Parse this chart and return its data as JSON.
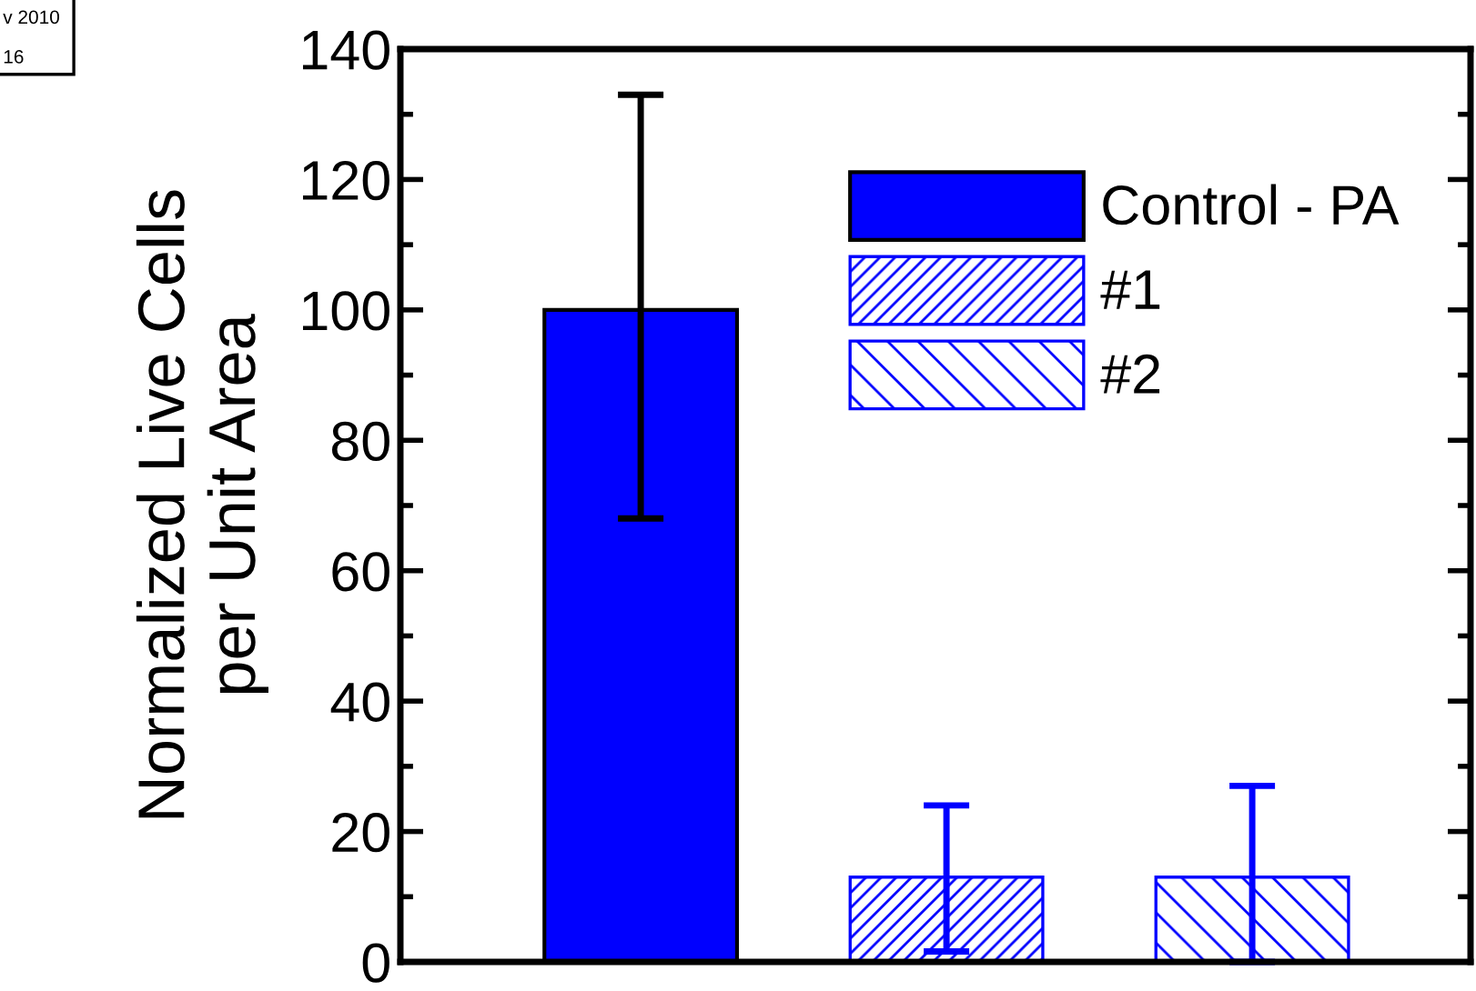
{
  "chart_data": {
    "type": "bar",
    "ylabel": "Normalized Live Cells\nper Unit Area",
    "categories": [
      null,
      null,
      null
    ],
    "series": [
      {
        "name": "Control - PA",
        "color": "#0000ff",
        "values": [
          100,
          null,
          null
        ],
        "errors": [
          [
            68,
            133
          ],
          null,
          null
        ]
      },
      {
        "name": "#1",
        "color": "#0000ff",
        "values": [
          null,
          13,
          null
        ],
        "errors": [
          null,
          [
            1.6,
            24
          ],
          null
        ]
      },
      {
        "name": "#2",
        "color": "#0000ff",
        "values": [
          null,
          null,
          13
        ],
        "errors": [
          null,
          null,
          [
            0,
            27
          ]
        ]
      }
    ],
    "ylim": [
      0,
      140
    ],
    "yticks": [
      0,
      20,
      40,
      60,
      80,
      100,
      120,
      140
    ],
    "tick_labels": "y",
    "grid": false,
    "legend": "top right",
    "annotations": [
      "v 2010",
      "16"
    ]
  }
}
